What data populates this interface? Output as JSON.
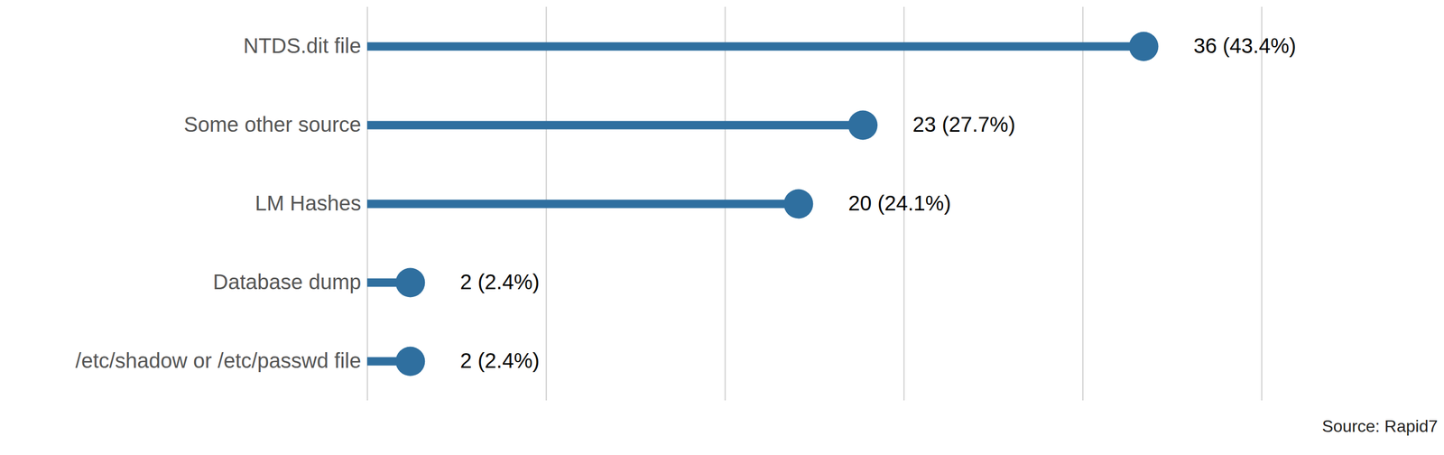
{
  "chart_data": {
    "type": "bar",
    "orientation": "horizontal",
    "marker": "circle",
    "categories": [
      "NTDS.dit file",
      "Some other source",
      "LM Hashes",
      "Database dump",
      "/etc/shadow or /etc/passwd file"
    ],
    "values": [
      43.4,
      27.7,
      24.1,
      2.4,
      2.4
    ],
    "value_labels": [
      "36 (43.4%)",
      "23 (27.7%)",
      "20 (24.1%)",
      "2 (2.4%)",
      "2 (2.4%)"
    ],
    "color": "#2f6f9f",
    "xlim": [
      0,
      50
    ],
    "xticks": [
      0,
      10,
      20,
      30,
      40,
      50
    ],
    "grid": true,
    "data_labels": true,
    "tick_labels": "y",
    "caption": "Source: Rapid7"
  }
}
